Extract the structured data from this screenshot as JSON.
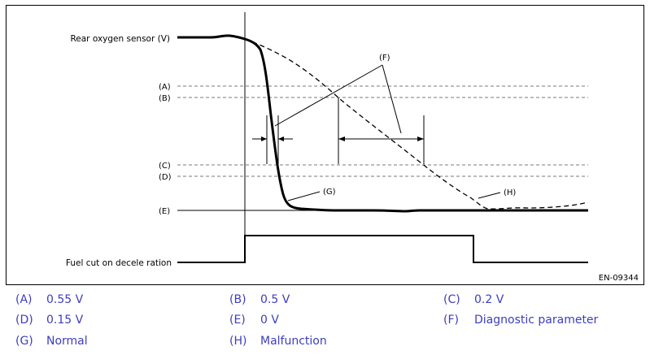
{
  "diagram": {
    "signal_labels": {
      "rear_o2": "Rear oxygen sensor (V)",
      "fuel_cut": "Fuel cut on decele ration"
    },
    "levels": {
      "a": "(A)",
      "b": "(B)",
      "c": "(C)",
      "d": "(D)",
      "e": "(E)"
    },
    "callouts": {
      "f": "(F)",
      "g": "(G)",
      "h": "(H)"
    },
    "figure_id": "EN-09344"
  },
  "legend": [
    {
      "code": "(A)",
      "text": "0.55 V"
    },
    {
      "code": "(B)",
      "text": "0.5 V"
    },
    {
      "code": "(C)",
      "text": "0.2 V"
    },
    {
      "code": "(D)",
      "text": "0.15 V"
    },
    {
      "code": "(E)",
      "text": "0 V"
    },
    {
      "code": "(F)",
      "text": "Diagnostic parameter"
    },
    {
      "code": "(G)",
      "text": "Normal"
    },
    {
      "code": "(H)",
      "text": "Malfunction"
    }
  ],
  "colors": {
    "line": "#000000",
    "threshold": "#7a7a7a",
    "legend_text": "#3d3dc0"
  }
}
